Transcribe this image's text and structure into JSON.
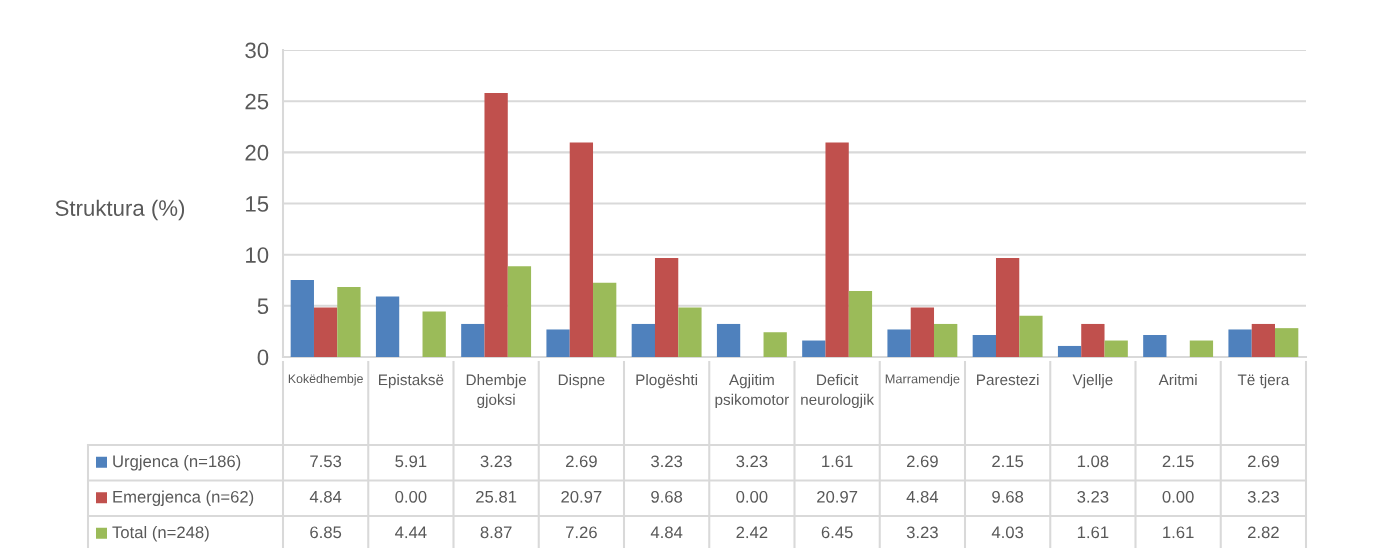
{
  "chart_data": {
    "type": "bar",
    "ylabel": "Struktura (%)",
    "categories": [
      "Kokëdhembje",
      "Epistaksë",
      "Dhembje gjoksi",
      "Dispne",
      "Plogështi",
      "Agjitim psikomotor",
      "Deficit neurologjik",
      "Marramendje",
      "Parestezi",
      "Vjellje",
      "Aritmi",
      "Të tjera"
    ],
    "series": [
      {
        "name": "Urgjenca (n=186)",
        "color": "#4f81bd",
        "values": [
          7.53,
          5.91,
          3.23,
          2.69,
          3.23,
          3.23,
          1.61,
          2.69,
          2.15,
          1.08,
          2.15,
          2.69
        ],
        "value_labels": [
          "7.53",
          "5.91",
          "3.23",
          "2.69",
          "3.23",
          "3.23",
          "1.61",
          "2.69",
          "2.15",
          "1.08",
          "2.15",
          "2.69"
        ]
      },
      {
        "name": "Emergjenca (n=62)",
        "color": "#c0504d",
        "values": [
          4.84,
          0.0,
          25.81,
          20.97,
          9.68,
          0.0,
          20.97,
          4.84,
          9.68,
          3.23,
          0.0,
          3.23
        ],
        "value_labels": [
          "4.84",
          "0.00",
          "25.81",
          "20.97",
          "9.68",
          "0.00",
          "20.97",
          "4.84",
          "9.68",
          "3.23",
          "0.00",
          "3.23"
        ]
      },
      {
        "name": "Total (n=248)",
        "color": "#9bbb59",
        "values": [
          6.85,
          4.44,
          8.87,
          7.26,
          4.84,
          2.42,
          6.45,
          3.23,
          4.03,
          1.61,
          1.61,
          2.82
        ],
        "value_labels": [
          "6.85",
          "4.44",
          "8.87",
          "7.26",
          "4.84",
          "2.42",
          "6.45",
          "3.23",
          "4.03",
          "1.61",
          "1.61",
          "2.82"
        ]
      }
    ],
    "ylim": [
      0,
      30
    ],
    "yticks": [
      0,
      5,
      10,
      15,
      20,
      25,
      30
    ],
    "grid": "y",
    "legend": "bottom"
  }
}
